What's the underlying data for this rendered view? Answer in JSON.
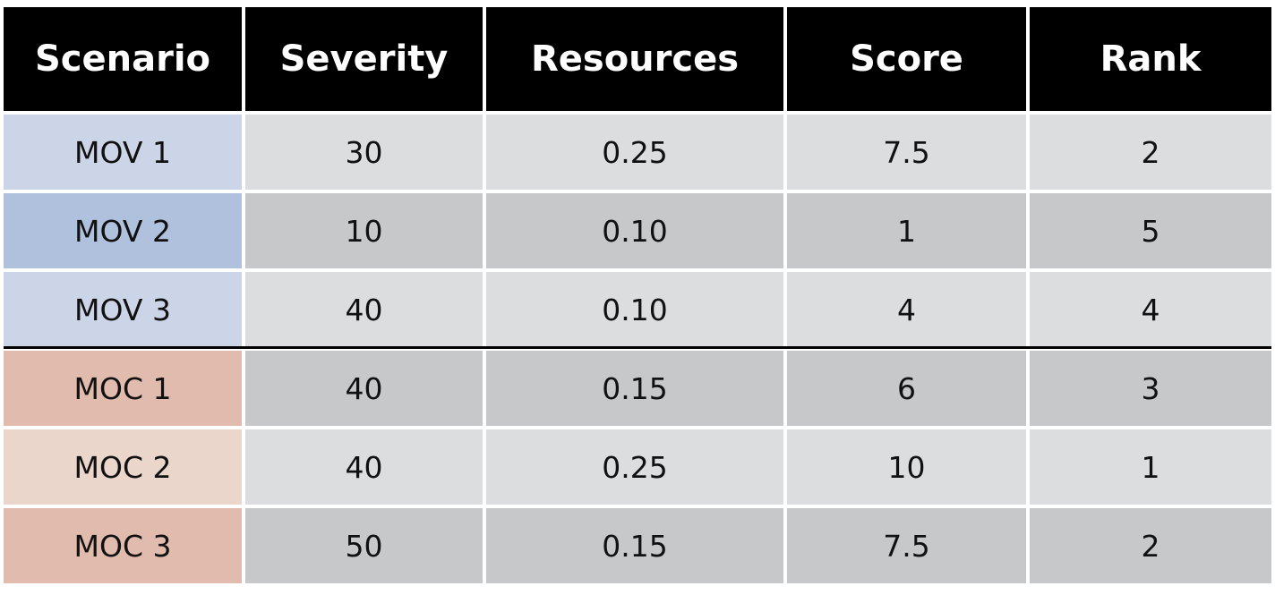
{
  "table": {
    "header": [
      "Scenario",
      "Severity",
      "Resources",
      "Score",
      "Rank"
    ],
    "rows": [
      [
        "MOV 1",
        "30",
        "0.25",
        "7.5",
        "2"
      ],
      [
        "MOV 2",
        "10",
        "0.10",
        "1",
        "5"
      ],
      [
        "MOV 3",
        "40",
        "0.10",
        "4",
        "4"
      ],
      [
        "MOC 1",
        "40",
        "0.15",
        "6",
        "3"
      ],
      [
        "MOC 2",
        "40",
        "0.25",
        "10",
        "1"
      ],
      [
        "MOC 3",
        "50",
        "0.15",
        "7.5",
        "2"
      ]
    ]
  }
}
